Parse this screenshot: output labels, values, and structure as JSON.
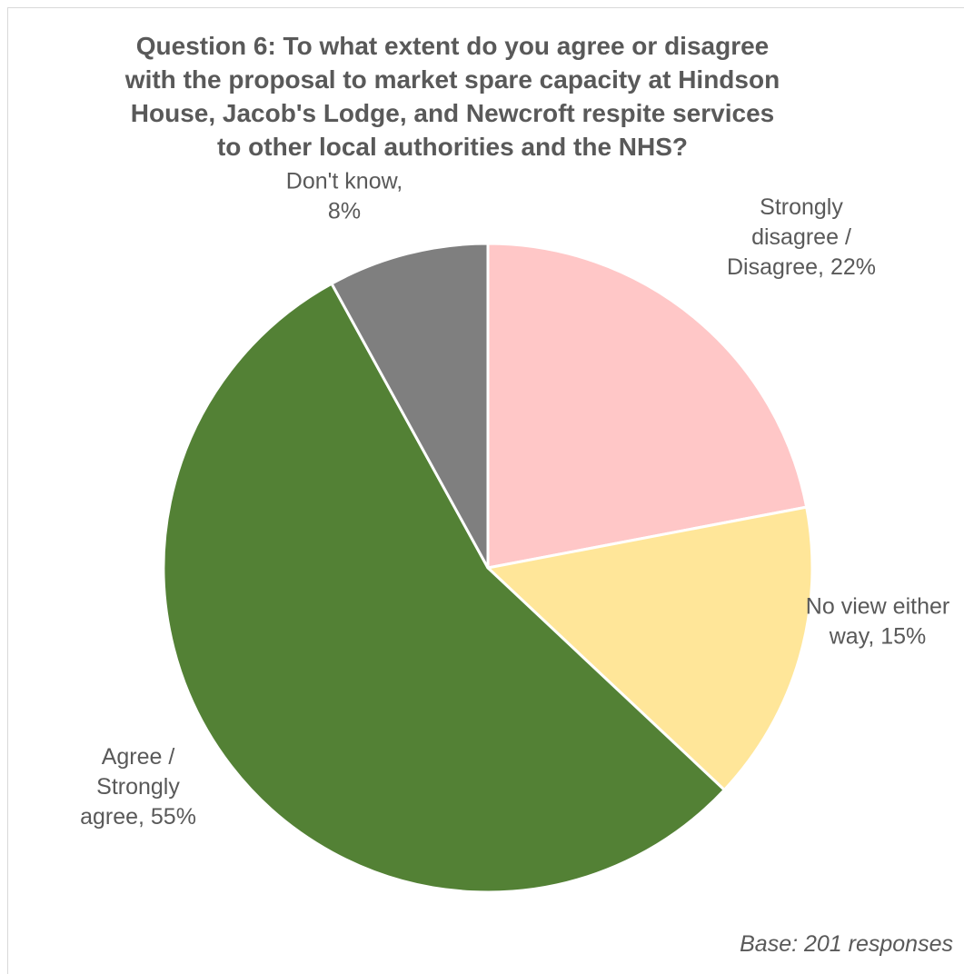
{
  "chart_data": {
    "type": "pie",
    "title_lines": [
      "Question 6: To what extent do you agree or disagree",
      "with the proposal to market spare capacity at Hindson",
      "House, Jacob's Lodge, and Newcroft respite services",
      "to other local authorities and the NHS?"
    ],
    "slices": [
      {
        "label_lines": [
          "Strongly",
          "disagree /",
          "Disagree, 22%"
        ],
        "value": 22,
        "color": "#ffc7c7"
      },
      {
        "label_lines": [
          "No view either",
          "way, 15%"
        ],
        "value": 15,
        "color": "#ffe699"
      },
      {
        "label_lines": [
          "Agree /",
          "Strongly",
          "agree, 55%"
        ],
        "value": 55,
        "color": "#538135"
      },
      {
        "label_lines": [
          "Don't know,",
          "8%"
        ],
        "value": 8,
        "color": "#7f7f7f"
      }
    ],
    "start_angle": "12 o'clock",
    "direction": "clockwise",
    "legend": "none",
    "data_labels": "outside"
  },
  "footnote": "Base: 201 responses",
  "colors": {
    "text": "#595959",
    "slice_border": "#ffffff"
  }
}
